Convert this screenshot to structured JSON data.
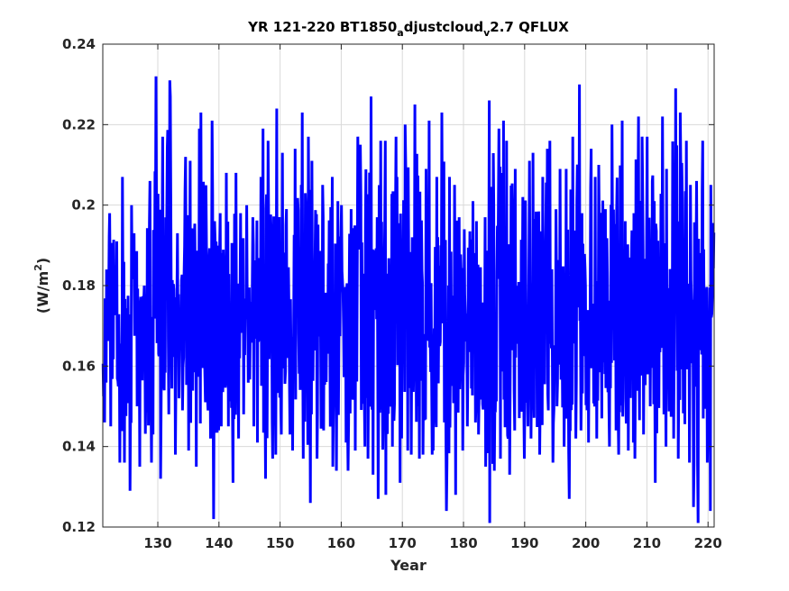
{
  "chart_data": {
    "type": "line",
    "title": {
      "part1": "YR 121-220 BT1850",
      "sub1": "a",
      "part2": "djustcloud",
      "sub2": "v",
      "part3": "2.7 QFLUX"
    },
    "xlabel": "Year",
    "ylabel": {
      "main": "(W/m",
      "sup": "2",
      "end": ")"
    },
    "xlim": [
      121,
      221
    ],
    "ylim": [
      0.12,
      0.24
    ],
    "xticks": [
      130,
      140,
      150,
      160,
      170,
      180,
      190,
      200,
      210,
      220
    ],
    "yticks": [
      0.12,
      0.14,
      0.16,
      0.18,
      0.2,
      0.22,
      0.24
    ],
    "ytick_labels": [
      "0.12",
      "0.14",
      "0.16",
      "0.18",
      "0.2",
      "0.22",
      "0.24"
    ],
    "grid": true,
    "series": [
      {
        "color": "#0000ff",
        "line_width": 3,
        "resolution": "monthly, 1200 values",
        "highs": [
          0.184,
          0.198,
          0.191,
          0.207,
          0.2,
          0.193,
          0.18,
          0.206,
          0.232,
          0.217,
          0.231,
          0.227,
          0.193,
          0.212,
          0.211,
          0.219,
          0.223,
          0.221,
          0.196,
          0.198,
          0.208,
          0.208,
          0.198,
          0.2,
          0.197,
          0.207,
          0.219,
          0.216,
          0.224,
          0.213,
          0.199,
          0.214,
          0.223,
          0.217,
          0.211,
          0.205,
          0.197,
          0.207,
          0.201,
          0.2,
          0.199,
          0.217,
          0.215,
          0.227,
          0.197,
          0.216,
          0.216,
          0.217,
          0.207,
          0.22,
          0.192,
          0.225,
          0.209,
          0.221,
          0.207,
          0.223,
          0.207,
          0.205,
          0.197,
          0.194,
          0.201,
          0.196,
          0.197,
          0.226,
          0.219,
          0.221,
          0.216,
          0.209,
          0.202,
          0.211,
          0.213,
          0.207,
          0.214,
          0.216,
          0.209,
          0.209,
          0.217,
          0.23,
          0.198,
          0.214,
          0.207,
          0.21,
          0.199,
          0.22,
          0.221,
          0.196,
          0.198,
          0.222,
          0.217,
          0.217,
          0.201,
          0.222,
          0.209,
          0.229,
          0.223,
          0.216,
          0.205,
          0.206,
          0.216,
          0.205
        ],
        "lows": [
          0.146,
          0.145,
          0.136,
          0.136,
          0.129,
          0.15,
          0.135,
          0.136,
          0.143,
          0.132,
          0.148,
          0.138,
          0.152,
          0.149,
          0.139,
          0.135,
          0.151,
          0.142,
          0.122,
          0.145,
          0.145,
          0.131,
          0.142,
          0.148,
          0.145,
          0.141,
          0.132,
          0.137,
          0.138,
          0.143,
          0.143,
          0.139,
          0.137,
          0.126,
          0.148,
          0.137,
          0.144,
          0.135,
          0.134,
          0.141,
          0.134,
          0.139,
          0.14,
          0.137,
          0.133,
          0.127,
          0.128,
          0.14,
          0.131,
          0.139,
          0.138,
          0.137,
          0.138,
          0.138,
          0.139,
          0.146,
          0.124,
          0.128,
          0.139,
          0.145,
          0.146,
          0.143,
          0.135,
          0.121,
          0.134,
          0.137,
          0.133,
          0.144,
          0.137,
          0.145,
          0.142,
          0.138,
          0.149,
          0.136,
          0.15,
          0.14,
          0.127,
          0.142,
          0.144,
          0.141,
          0.142,
          0.147,
          0.14,
          0.144,
          0.138,
          0.139,
          0.141,
          0.137,
          0.143,
          0.15,
          0.131,
          0.148,
          0.14,
          0.142,
          0.137,
          0.136,
          0.125,
          0.121,
          0.136,
          0.124
        ],
        "mean": 0.172
      }
    ]
  }
}
